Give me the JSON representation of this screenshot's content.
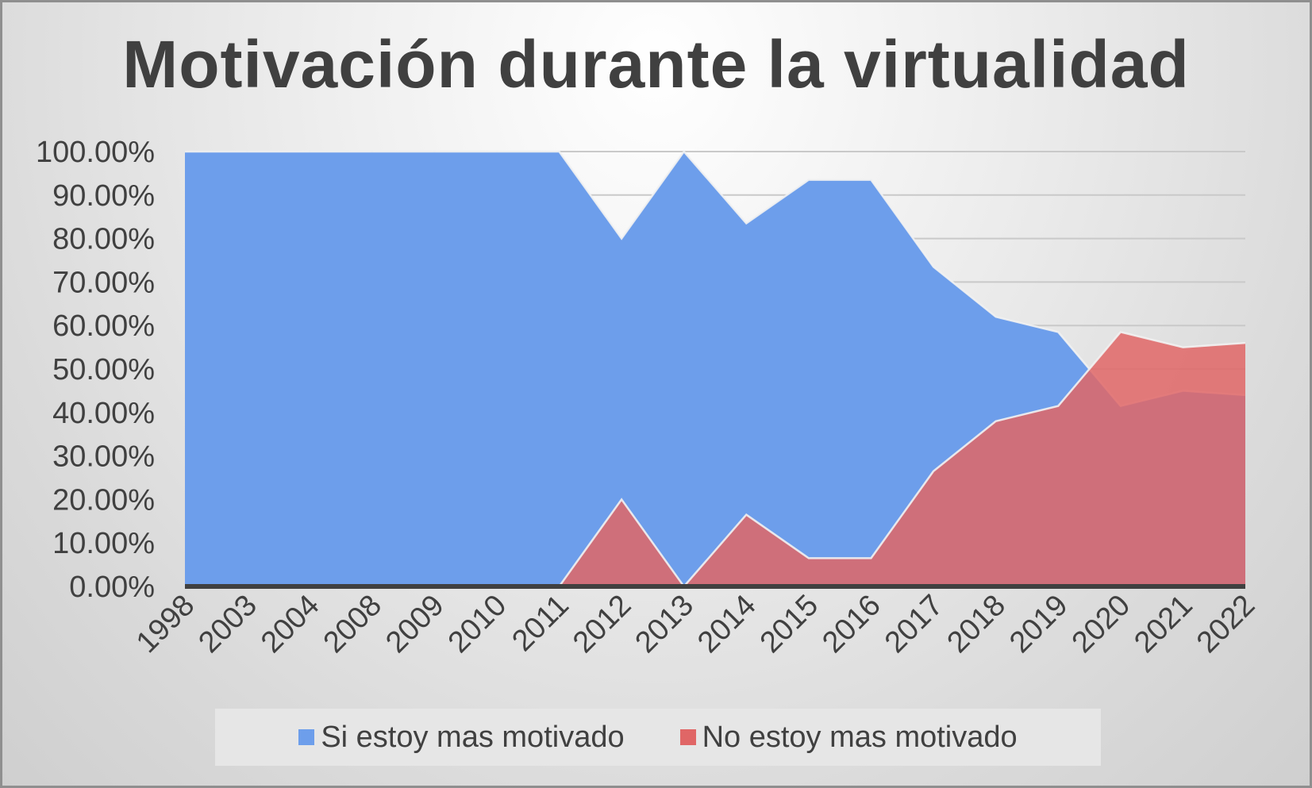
{
  "chart_data": {
    "type": "area",
    "title": "Motivación durante la virtualidad",
    "categories": [
      "1998",
      "2003",
      "2004",
      "2008",
      "2009",
      "2010",
      "2011",
      "2012",
      "2013",
      "2014",
      "2015",
      "2016",
      "2017",
      "2018",
      "2019",
      "2020",
      "2021",
      "2022"
    ],
    "series": [
      {
        "name": "Si estoy mas motivado",
        "color": "#6d9eeb",
        "values": [
          100,
          100,
          100,
          100,
          100,
          100,
          100,
          80,
          100,
          83.5,
          93.5,
          93.5,
          73.5,
          62,
          58.5,
          41.5,
          45,
          44
        ]
      },
      {
        "name": "No estoy mas motivado",
        "color": "#e06666",
        "values": [
          0,
          0,
          0,
          0,
          0,
          0,
          0,
          20,
          0,
          16.5,
          6.5,
          6.5,
          26.5,
          38,
          41.5,
          58.5,
          55,
          56
        ]
      }
    ],
    "ylim": [
      0,
      100
    ],
    "y_ticks": [
      "0.00%",
      "10.00%",
      "20.00%",
      "30.00%",
      "40.00%",
      "50.00%",
      "60.00%",
      "70.00%",
      "80.00%",
      "90.00%",
      "100.00%"
    ],
    "grid": true,
    "legend": "bottom"
  }
}
